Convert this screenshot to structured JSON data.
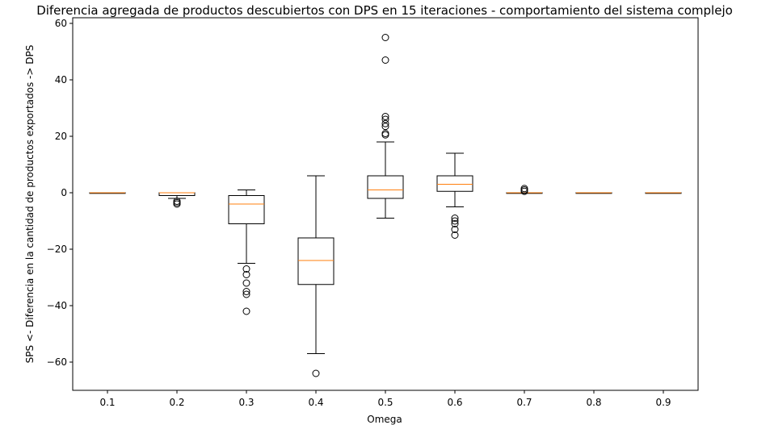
{
  "chart_data": {
    "type": "box",
    "title": "Diferencia agregada de productos descubiertos con DPS en 15 iteraciones - comportamiento del sistema complejo",
    "xlabel": "Omega",
    "ylabel": "SPS <- Diferencia en la cantidad de productos exportados -> DPS",
    "ylim": [
      -70,
      62
    ],
    "yticks": [
      -60,
      -40,
      -20,
      0,
      20,
      40,
      60
    ],
    "grid": false,
    "categories": [
      "0.1",
      "0.2",
      "0.3",
      "0.4",
      "0.5",
      "0.6",
      "0.7",
      "0.8",
      "0.9"
    ],
    "boxes": [
      {
        "category": "0.1",
        "whisker_low": 0,
        "q1": 0,
        "median": 0,
        "q3": 0,
        "whisker_high": 0,
        "outliers": []
      },
      {
        "category": "0.2",
        "whisker_low": -2,
        "q1": -1,
        "median": 0,
        "q3": 0,
        "whisker_high": 0,
        "outliers": [
          -3,
          -3.5,
          -4
        ]
      },
      {
        "category": "0.3",
        "whisker_low": -25,
        "q1": -11,
        "median": -4,
        "q3": -1,
        "whisker_high": 1,
        "outliers": [
          -27,
          -29,
          -32,
          -35,
          -36,
          -42
        ]
      },
      {
        "category": "0.4",
        "whisker_low": -57,
        "q1": -32.5,
        "median": -24,
        "q3": -16,
        "whisker_high": 6,
        "outliers": [
          -64
        ]
      },
      {
        "category": "0.5",
        "whisker_low": -9,
        "q1": -2,
        "median": 1,
        "q3": 6,
        "whisker_high": 18,
        "outliers": [
          20.5,
          21,
          23.5,
          24.5,
          26,
          27,
          47,
          55
        ]
      },
      {
        "category": "0.6",
        "whisker_low": -5,
        "q1": 0.5,
        "median": 3,
        "q3": 6,
        "whisker_high": 14,
        "outliers": [
          -9,
          -10,
          -11,
          -13,
          -15
        ]
      },
      {
        "category": "0.7",
        "whisker_low": 0,
        "q1": 0,
        "median": 0,
        "q3": 0,
        "whisker_high": 0,
        "outliers": [
          0.5,
          1,
          1.5
        ]
      },
      {
        "category": "0.8",
        "whisker_low": 0,
        "q1": 0,
        "median": 0,
        "q3": 0,
        "whisker_high": 0,
        "outliers": []
      },
      {
        "category": "0.9",
        "whisker_low": 0,
        "q1": 0,
        "median": 0,
        "q3": 0,
        "whisker_high": 0,
        "outliers": []
      }
    ],
    "colors": {
      "box": "#000000",
      "median": "#ff7f0e",
      "outlier": "#000000"
    }
  }
}
